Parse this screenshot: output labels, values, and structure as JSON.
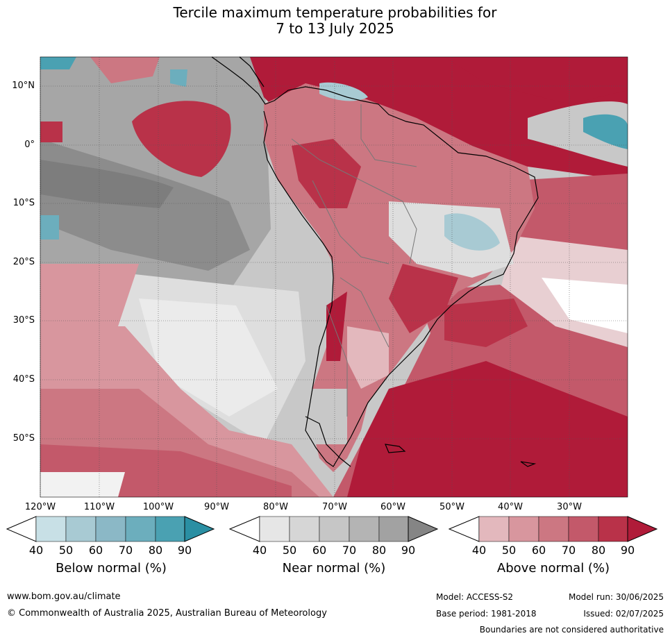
{
  "title": {
    "line1": "Tercile maximum temperature probabilities for",
    "line2": "7 to 13 July 2025"
  },
  "map": {
    "lat_labels": [
      "10°N",
      "0°",
      "10°S",
      "20°S",
      "30°S",
      "40°S",
      "50°S"
    ],
    "lon_labels": [
      "120°W",
      "110°W",
      "100°W",
      "90°W",
      "80°W",
      "70°W",
      "60°W",
      "50°W",
      "40°W",
      "30°W"
    ]
  },
  "colorbars": [
    {
      "title": "Below normal (%)",
      "ticks": [
        "40",
        "50",
        "60",
        "70",
        "80",
        "90"
      ],
      "colors": [
        "#ffffff",
        "#c8e0e6",
        "#a8cad3",
        "#8bb8c6",
        "#6caebd",
        "#4aa1b2",
        "#2a8fa3"
      ]
    },
    {
      "title": "Near normal (%)",
      "ticks": [
        "40",
        "50",
        "60",
        "70",
        "80",
        "90"
      ],
      "colors": [
        "#ffffff",
        "#e6e6e6",
        "#d6d6d6",
        "#c6c6c6",
        "#b4b4b4",
        "#a2a2a2",
        "#858585"
      ]
    },
    {
      "title": "Above normal (%)",
      "ticks": [
        "40",
        "50",
        "60",
        "70",
        "80",
        "90"
      ],
      "colors": [
        "#ffffff",
        "#e3b8bd",
        "#d8969e",
        "#cc7782",
        "#c3596a",
        "#b93249",
        "#b01b39"
      ]
    }
  ],
  "footer": {
    "website": "www.bom.gov.au/climate",
    "copyright": "© Commonwealth of Australia 2025, Australian Bureau of Meteorology",
    "model": "Model: ACCESS-S2",
    "model_run": "Model run: 30/06/2025",
    "base_period": "Base period: 1981-2018",
    "issued": "Issued: 02/07/2025",
    "disclaimer": "Boundaries are not considered authoritative"
  }
}
